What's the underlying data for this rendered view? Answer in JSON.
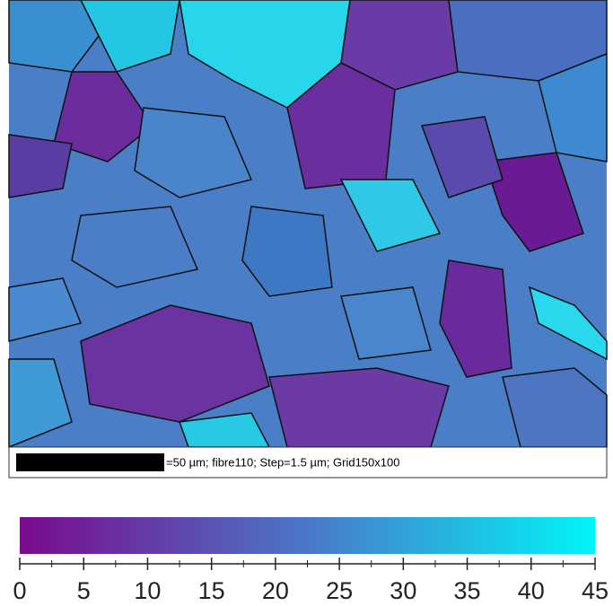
{
  "scale_bar": {
    "caption": "=50 µm; fibre110; Step=1.5 µm; Grid150x100"
  },
  "colorbar": {
    "range": [
      0,
      45
    ],
    "ticks": [
      0,
      5,
      10,
      15,
      20,
      25,
      30,
      35,
      40,
      45
    ],
    "colors": [
      "#7a0a8c",
      "#4a78c8",
      "#00f4f8"
    ]
  }
}
